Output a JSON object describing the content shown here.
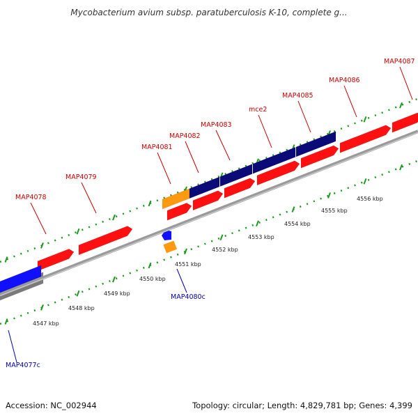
{
  "title": "Mycobacterium avium subsp. paratuberculosis K-10, complete g...",
  "footer": {
    "accession": "Accession: NC_002944",
    "summary": "Topology: circular; Length: 4,829,781 bp; Genes: 4,399"
  },
  "colors": {
    "gene_red": "#ff1010",
    "gene_navy": "#0a0a78",
    "gene_orange": "#ff9a10",
    "gene_blue": "#1010ff",
    "gene_gray": "#7a7a7a",
    "backbone": "#9a9a9a",
    "tick_green": "#1a9a1a",
    "label_red": "#cc0000",
    "label_blue": "#0000aa"
  },
  "scale_ticks": [
    {
      "label": "4547 kbp"
    },
    {
      "label": "4548 kbp"
    },
    {
      "label": "4549 kbp"
    },
    {
      "label": "4550 kbp"
    },
    {
      "label": "4551 kbp"
    },
    {
      "label": "4552 kbp"
    },
    {
      "label": "4553 kbp"
    },
    {
      "label": "4554 kbp"
    },
    {
      "label": "4555 kbp"
    },
    {
      "label": "4556 kbp"
    }
  ],
  "gene_labels": [
    {
      "name": "MAP4077c",
      "strand": "reverse"
    },
    {
      "name": "MAP4078",
      "strand": "forward"
    },
    {
      "name": "MAP4079",
      "strand": "forward"
    },
    {
      "name": "MAP4080c",
      "strand": "reverse"
    },
    {
      "name": "MAP4081",
      "strand": "forward"
    },
    {
      "name": "MAP4082",
      "strand": "forward"
    },
    {
      "name": "MAP4083",
      "strand": "forward"
    },
    {
      "name": "mce2",
      "strand": "forward"
    },
    {
      "name": "MAP4085",
      "strand": "forward"
    },
    {
      "name": "MAP4086",
      "strand": "forward"
    },
    {
      "name": "MAP4087",
      "strand": "forward"
    }
  ]
}
